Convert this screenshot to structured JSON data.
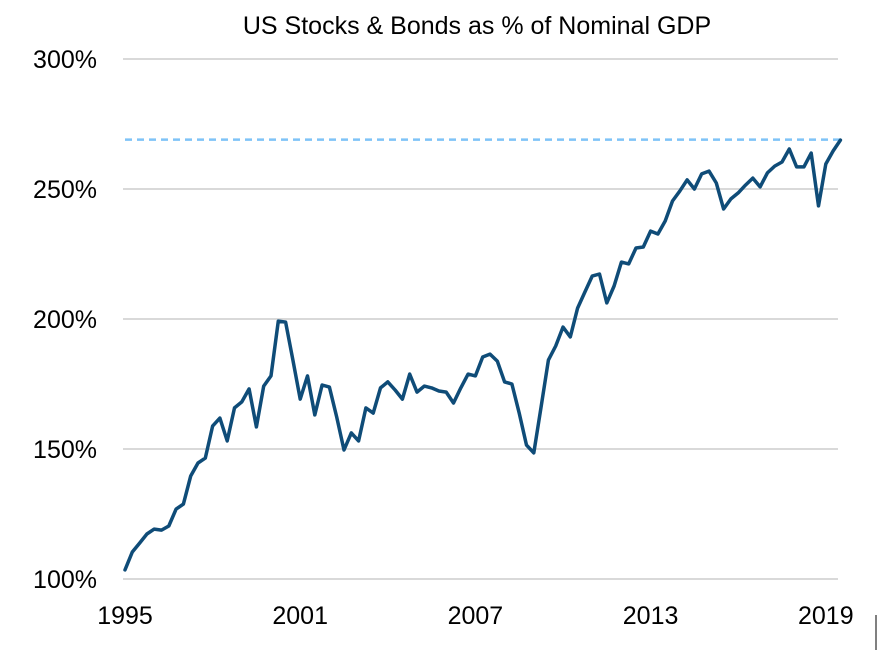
{
  "chart_data": {
    "type": "line",
    "title": "US Stocks & Bonds as % of Nominal GDP",
    "xlabel": "",
    "ylabel": "",
    "x_start": "1995Q1",
    "frequency": "quarterly",
    "xticks": [
      "1995",
      "2001",
      "2007",
      "2013",
      "2019"
    ],
    "yticks": [
      "100%",
      "150%",
      "200%",
      "250%",
      "300%"
    ],
    "ylim": [
      100,
      300
    ],
    "grid": "horizontal",
    "series": [
      {
        "color": "#0f4c78",
        "values": [
          103.5,
          110.4,
          113.8,
          117.3,
          119.2,
          118.8,
          120.4,
          126.9,
          128.8,
          139.6,
          144.6,
          146.5,
          158.8,
          161.9,
          153.1,
          165.8,
          168.1,
          173.1,
          158.5,
          174.2,
          178.1,
          199.2,
          198.8,
          184.2,
          169.2,
          178.1,
          163.1,
          174.6,
          173.8,
          162.3,
          149.6,
          156.2,
          153.1,
          165.8,
          163.8,
          173.5,
          175.8,
          172.7,
          169.2,
          178.8,
          171.9,
          174.2,
          173.5,
          172.3,
          171.9,
          167.7,
          173.5,
          178.8,
          178.1,
          185.4,
          186.5,
          183.8,
          175.8,
          175.0,
          163.8,
          151.5,
          148.5,
          166.2,
          184.2,
          189.6,
          196.9,
          193.1,
          204.2,
          210.4,
          216.5,
          217.3,
          206.2,
          212.7,
          221.9,
          221.2,
          227.3,
          227.7,
          233.8,
          232.7,
          237.7,
          245.4,
          249.2,
          253.5,
          250.0,
          255.8,
          256.9,
          252.3,
          242.3,
          246.2,
          248.5,
          251.5,
          254.2,
          250.8,
          256.2,
          258.8,
          260.4,
          265.4,
          258.5,
          258.5,
          263.8,
          243.5,
          259.6,
          264.6,
          268.8
        ]
      }
    ],
    "reference_line": {
      "value": 269,
      "style": "dashed",
      "color": "#7fc3f7"
    }
  }
}
